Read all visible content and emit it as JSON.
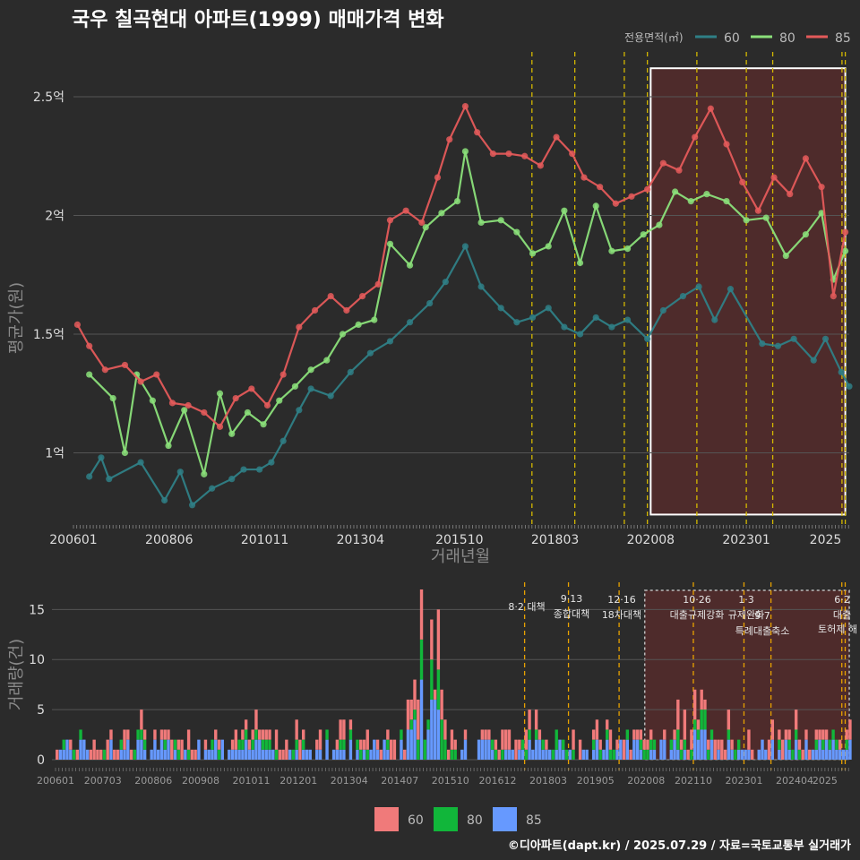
{
  "title": "국우 칠곡현대 아파트(1999) 매매가격 변화",
  "footer": "©디아파트(dapt.kr) / 2025.07.29 / 자료=국토교통부 실거래가",
  "colors": {
    "s60": "#2f7f86",
    "s80": "#8be07a",
    "s85": "#e45a5a",
    "b60": "#f07a7a",
    "b80": "#11b63a",
    "b85": "#6699ff",
    "vline": "#d4b800",
    "oline": "#e8a200",
    "highlight": "#6b2b2b"
  },
  "chart_data": [
    {
      "type": "line",
      "title": "국우 칠곡현대 아파트(1999) 매매가격 변화",
      "xlabel": "거래년월",
      "ylabel": "평균가(원)",
      "x_ticks": [
        "200601",
        "200806",
        "201011",
        "201304",
        "201510",
        "201803",
        "202008",
        "202301",
        "2025"
      ],
      "y_ticks": [
        {
          "v": 1.0,
          "label": "1억"
        },
        {
          "v": 1.5,
          "label": "1.5억"
        },
        {
          "v": 2.0,
          "label": "2억"
        },
        {
          "v": 2.5,
          "label": "2.5억"
        }
      ],
      "ylim": [
        0.7,
        2.7
      ],
      "legend": {
        "title": "전용면적(㎡)",
        "position": "top-right",
        "entries": [
          "60",
          "80",
          "85"
        ]
      },
      "policy_lines": [
        "2017-08",
        "2018-09",
        "2019-12",
        "2020-07",
        "2021-10",
        "2023-01",
        "2023-09",
        "2025-06",
        "2025-07"
      ],
      "highlight": {
        "x_start": "2020-08",
        "x_end": "2025-07",
        "y_min": 0.74,
        "y_max": 2.62
      },
      "series": [
        {
          "name": "60",
          "values": [
            [
              2006.4,
              0.9
            ],
            [
              2006.7,
              0.98
            ],
            [
              2006.9,
              0.89
            ],
            [
              2007.7,
              0.96
            ],
            [
              2008.3,
              0.8
            ],
            [
              2008.7,
              0.92
            ],
            [
              2009.0,
              0.78
            ],
            [
              2009.5,
              0.85
            ],
            [
              2010.0,
              0.89
            ],
            [
              2010.3,
              0.93
            ],
            [
              2010.7,
              0.93
            ],
            [
              2011.0,
              0.96
            ],
            [
              2011.3,
              1.05
            ],
            [
              2011.7,
              1.18
            ],
            [
              2012.0,
              1.27
            ],
            [
              2012.5,
              1.24
            ],
            [
              2013.0,
              1.34
            ],
            [
              2013.5,
              1.42
            ],
            [
              2014.0,
              1.47
            ],
            [
              2014.5,
              1.55
            ],
            [
              2015.0,
              1.63
            ],
            [
              2015.4,
              1.72
            ],
            [
              2015.9,
              1.87
            ],
            [
              2016.3,
              1.7
            ],
            [
              2016.8,
              1.61
            ],
            [
              2017.2,
              1.55
            ],
            [
              2017.6,
              1.57
            ],
            [
              2018.0,
              1.61
            ],
            [
              2018.4,
              1.53
            ],
            [
              2018.8,
              1.5
            ],
            [
              2019.2,
              1.57
            ],
            [
              2019.6,
              1.53
            ],
            [
              2020.0,
              1.56
            ],
            [
              2020.5,
              1.48
            ],
            [
              2020.9,
              1.6
            ],
            [
              2021.4,
              1.66
            ],
            [
              2021.8,
              1.7
            ],
            [
              2022.2,
              1.56
            ],
            [
              2022.6,
              1.69
            ],
            [
              2023.4,
              1.46
            ],
            [
              2023.8,
              1.45
            ],
            [
              2024.2,
              1.48
            ],
            [
              2024.7,
              1.39
            ],
            [
              2025.0,
              1.48
            ],
            [
              2025.4,
              1.34
            ],
            [
              2025.6,
              1.28
            ]
          ]
        },
        {
          "name": "80",
          "values": [
            [
              2006.4,
              1.33
            ],
            [
              2007.0,
              1.23
            ],
            [
              2007.3,
              1.0
            ],
            [
              2007.6,
              1.33
            ],
            [
              2008.0,
              1.22
            ],
            [
              2008.4,
              1.03
            ],
            [
              2008.8,
              1.18
            ],
            [
              2009.3,
              0.91
            ],
            [
              2009.7,
              1.25
            ],
            [
              2010.0,
              1.08
            ],
            [
              2010.4,
              1.17
            ],
            [
              2010.8,
              1.12
            ],
            [
              2011.2,
              1.22
            ],
            [
              2011.6,
              1.28
            ],
            [
              2012.0,
              1.35
            ],
            [
              2012.4,
              1.39
            ],
            [
              2012.8,
              1.5
            ],
            [
              2013.2,
              1.54
            ],
            [
              2013.6,
              1.56
            ],
            [
              2014.0,
              1.88
            ],
            [
              2014.5,
              1.79
            ],
            [
              2014.9,
              1.95
            ],
            [
              2015.3,
              2.01
            ],
            [
              2015.7,
              2.06
            ],
            [
              2015.9,
              2.27
            ],
            [
              2016.3,
              1.97
            ],
            [
              2016.8,
              1.98
            ],
            [
              2017.2,
              1.93
            ],
            [
              2017.6,
              1.84
            ],
            [
              2018.0,
              1.87
            ],
            [
              2018.4,
              2.02
            ],
            [
              2018.8,
              1.8
            ],
            [
              2019.2,
              2.04
            ],
            [
              2019.6,
              1.85
            ],
            [
              2020.0,
              1.86
            ],
            [
              2020.4,
              1.92
            ],
            [
              2020.8,
              1.96
            ],
            [
              2021.2,
              2.1
            ],
            [
              2021.6,
              2.06
            ],
            [
              2022.0,
              2.09
            ],
            [
              2022.5,
              2.06
            ],
            [
              2023.0,
              1.98
            ],
            [
              2023.5,
              1.99
            ],
            [
              2024.0,
              1.83
            ],
            [
              2024.5,
              1.92
            ],
            [
              2024.9,
              2.01
            ],
            [
              2025.2,
              1.73
            ],
            [
              2025.5,
              1.85
            ]
          ]
        },
        {
          "name": "85",
          "values": [
            [
              2006.1,
              1.54
            ],
            [
              2006.4,
              1.45
            ],
            [
              2006.8,
              1.35
            ],
            [
              2007.3,
              1.37
            ],
            [
              2007.7,
              1.3
            ],
            [
              2008.1,
              1.33
            ],
            [
              2008.5,
              1.21
            ],
            [
              2008.9,
              1.2
            ],
            [
              2009.3,
              1.17
            ],
            [
              2009.7,
              1.11
            ],
            [
              2010.1,
              1.23
            ],
            [
              2010.5,
              1.27
            ],
            [
              2010.9,
              1.2
            ],
            [
              2011.3,
              1.33
            ],
            [
              2011.7,
              1.53
            ],
            [
              2012.1,
              1.6
            ],
            [
              2012.5,
              1.66
            ],
            [
              2012.9,
              1.6
            ],
            [
              2013.3,
              1.66
            ],
            [
              2013.7,
              1.71
            ],
            [
              2014.0,
              1.98
            ],
            [
              2014.4,
              2.02
            ],
            [
              2014.8,
              1.97
            ],
            [
              2015.2,
              2.16
            ],
            [
              2015.5,
              2.32
            ],
            [
              2015.9,
              2.46
            ],
            [
              2016.2,
              2.35
            ],
            [
              2016.6,
              2.26
            ],
            [
              2017.0,
              2.26
            ],
            [
              2017.4,
              2.25
            ],
            [
              2017.8,
              2.21
            ],
            [
              2018.2,
              2.33
            ],
            [
              2018.6,
              2.26
            ],
            [
              2018.9,
              2.16
            ],
            [
              2019.3,
              2.12
            ],
            [
              2019.7,
              2.05
            ],
            [
              2020.1,
              2.08
            ],
            [
              2020.5,
              2.11
            ],
            [
              2020.9,
              2.22
            ],
            [
              2021.3,
              2.19
            ],
            [
              2021.7,
              2.33
            ],
            [
              2022.1,
              2.45
            ],
            [
              2022.5,
              2.3
            ],
            [
              2022.9,
              2.14
            ],
            [
              2023.3,
              2.02
            ],
            [
              2023.7,
              2.16
            ],
            [
              2024.1,
              2.09
            ],
            [
              2024.5,
              2.24
            ],
            [
              2024.9,
              2.12
            ],
            [
              2025.2,
              1.66
            ],
            [
              2025.5,
              1.93
            ]
          ]
        }
      ]
    },
    {
      "type": "bar",
      "ylabel": "거래량(건)",
      "ylim": [
        0,
        17
      ],
      "y_ticks": [
        0,
        5,
        10,
        15
      ],
      "x_ticks": [
        "200601",
        "200703",
        "200806",
        "200908",
        "201011",
        "201201",
        "201304",
        "201407",
        "201510",
        "201612",
        "201803",
        "201905",
        "202008",
        "202110",
        "202301",
        "202404",
        "2025"
      ],
      "legend": {
        "position": "bottom",
        "entries": [
          "60",
          "80",
          "85"
        ]
      },
      "annotations": [
        {
          "x": "2017-08",
          "lines": [
            "8·2 대책"
          ]
        },
        {
          "x": "2018-09",
          "lines": [
            "9·13",
            "종합대책"
          ]
        },
        {
          "x": "2019-12",
          "lines": [
            "12·16",
            "18차대책"
          ]
        },
        {
          "x": "2021-10",
          "lines": [
            "10·26",
            "대출규제강화"
          ]
        },
        {
          "x": "2023-01",
          "lines": [
            "1·3",
            "규제완화"
          ]
        },
        {
          "x": "2023-09",
          "lines": [
            "9·7",
            "특례대출축소"
          ]
        },
        {
          "x": "2025-06",
          "lines": [
            "토허제 해"
          ]
        },
        {
          "x": "2025-07",
          "lines": [
            "6·2",
            "대출"
          ]
        }
      ],
      "series_names": [
        "60",
        "80",
        "85"
      ]
    }
  ]
}
